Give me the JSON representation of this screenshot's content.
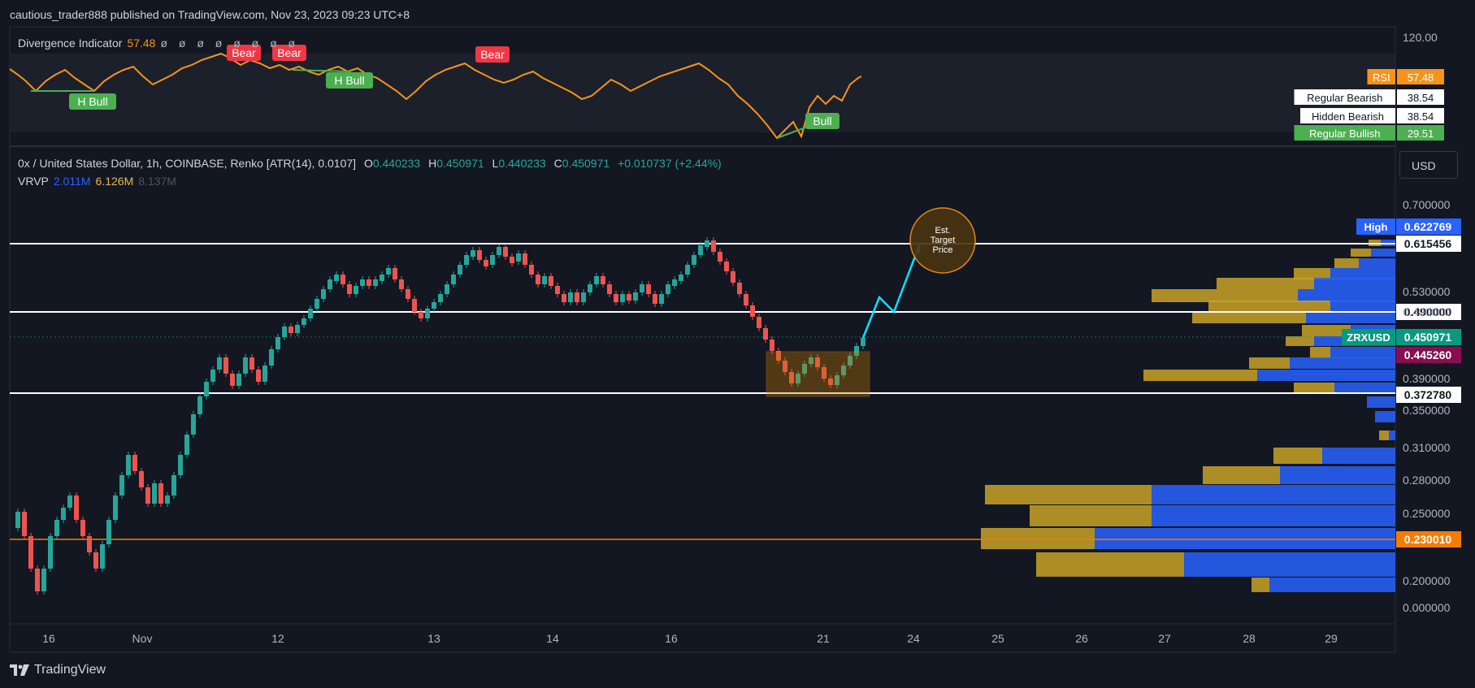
{
  "header": {
    "publisher": "cautious_trader888 published on TradingView.com, Nov 23, 2023 09:23 UTC+8"
  },
  "indicator": {
    "title": "Divergence Indicator",
    "value": "57.48",
    "placeholders": "ø ø ø ø ø ø ø ø",
    "top_scale": "120.00",
    "labels": [
      {
        "text": "Bear",
        "kind": "bear"
      },
      {
        "text": "Bear",
        "kind": "bear"
      },
      {
        "text": "Bear",
        "kind": "bear"
      },
      {
        "text": "H Bull",
        "kind": "bull"
      },
      {
        "text": "H Bull",
        "kind": "bull"
      },
      {
        "text": "Bull",
        "kind": "bull"
      }
    ],
    "readouts": [
      {
        "label": "RSI",
        "value": "57.48",
        "color": "#f7931a"
      },
      {
        "label": "Regular Bearish",
        "value": "38.54",
        "color": "#ffffff"
      },
      {
        "label": "Hidden Bearish",
        "value": "38.54",
        "color": "#ffffff"
      },
      {
        "label": "Regular Bullish",
        "value": "29.51",
        "color": "#4caf50"
      }
    ]
  },
  "main": {
    "legend": {
      "symbol": "0x / United States Dollar, 1h, COINBASE, Renko [ATR(14), 0.0107]",
      "o_label": "O",
      "o": "0.440233",
      "h_label": "H",
      "h": "0.450971",
      "l_label": "L",
      "l": "0.440233",
      "c_label": "C",
      "c": "0.450971",
      "change": "+0.010737 (+2.44%)"
    },
    "vrvp": {
      "label": "VRVP",
      "up": "2.011M",
      "down": "6.126M",
      "total": "8.137M"
    },
    "currency": "USD",
    "annotation": "Est. Target Price"
  },
  "chart_data": {
    "type": "renko",
    "symbol": "ZRXUSD",
    "price_axis_ticks": [
      "0.700000",
      "0.530000",
      "0.490000",
      "0.390000",
      "0.350000",
      "0.310000",
      "0.280000",
      "0.250000",
      "0.200000",
      "0.000000"
    ],
    "time_axis_ticks": [
      "16",
      "Nov",
      "12",
      "13",
      "14",
      "16",
      "21",
      "24",
      "25",
      "26",
      "27",
      "28",
      "29"
    ],
    "horizontal_levels": [
      0.615456,
      0.49,
      0.37278
    ],
    "price_labels": [
      {
        "label": "High",
        "value": "0.622769",
        "color": "#2962ff"
      },
      {
        "label": "",
        "value": "0.615456",
        "color": "#ffffff"
      },
      {
        "label": "",
        "value": "0.490000",
        "color": "#ffffff"
      },
      {
        "label": "ZRXUSD",
        "value": "0.450971",
        "color": "#089981"
      },
      {
        "label": "",
        "value": "0.445260",
        "color": "#880e4f"
      },
      {
        "label": "",
        "value": "0.372780",
        "color": "#ffffff"
      },
      {
        "label": "",
        "value": "0.230010",
        "color": "#f57c00"
      }
    ],
    "current_price": 0.450971,
    "poc_price": 0.23001,
    "projection": [
      0.450971,
      0.52,
      0.49,
      0.615456
    ],
    "consolidation_box": {
      "low": 0.37278,
      "high": 0.44
    }
  },
  "footer": {
    "brand": "TradingView"
  },
  "colors": {
    "bg": "#131722",
    "up": "#26a69a",
    "down": "#ef5350",
    "rsi": "#f7931a",
    "vp_up": "#2962ff",
    "vp_down": "#e8b94a",
    "projection": "#00e5ff"
  }
}
